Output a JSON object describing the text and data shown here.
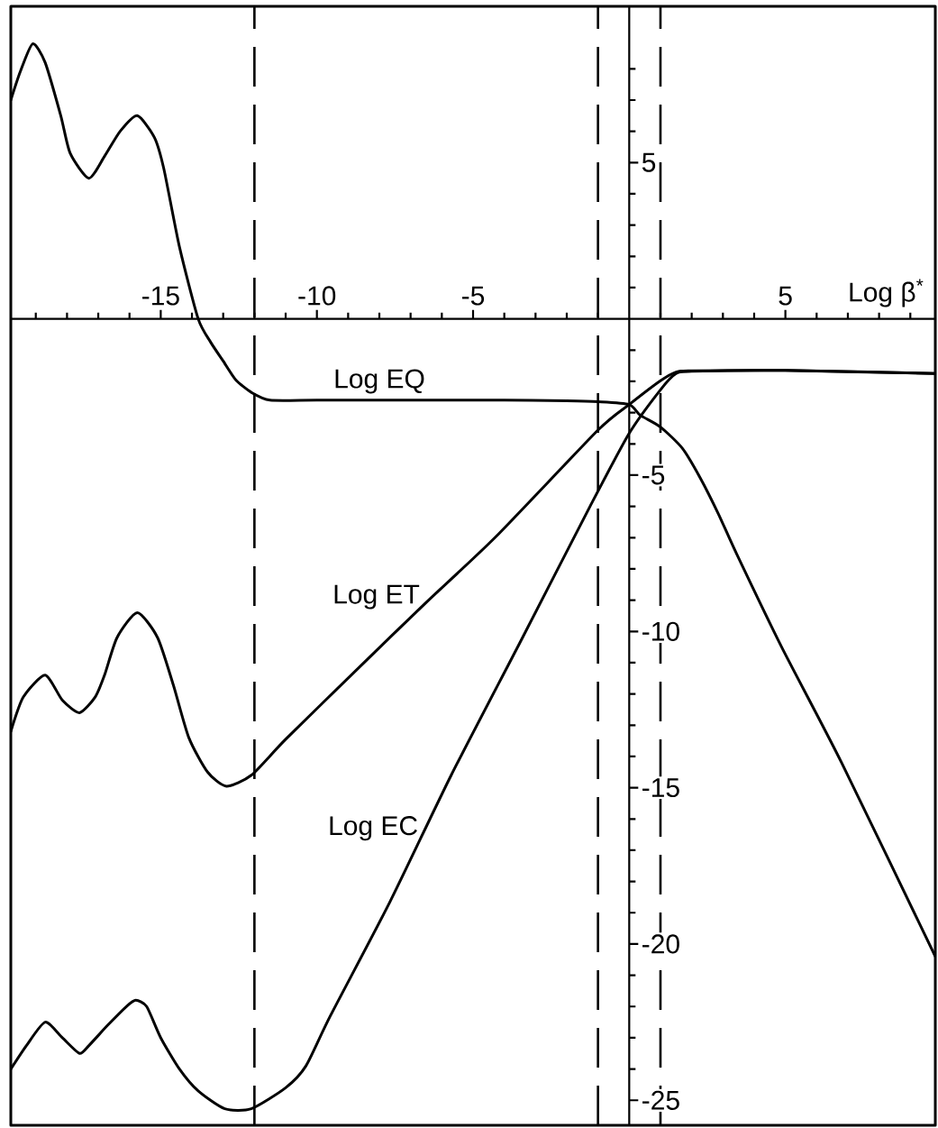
{
  "chart_data": {
    "type": "line",
    "xlabel": "Log β$^{*}$",
    "series": [
      {
        "name": "Log EQ",
        "color": "#000000",
        "x": [
          -19.8,
          -19.5,
          -19.1,
          -18.7,
          -18.2,
          -17.9,
          -17.3,
          -16.8,
          -16.3,
          -15.75,
          -15.2,
          -14.9,
          -14.4,
          -13.8,
          -13.4,
          -13.0,
          -12.6,
          -12.1,
          -11.5,
          -10,
          -7,
          -4,
          -2,
          -1,
          0,
          0.35,
          1,
          1.7,
          2.28,
          2.86,
          3.43,
          4.88,
          6.8,
          9.8
        ],
        "values": [
          7.0,
          7.9,
          8.8,
          8.2,
          6.5,
          5.3,
          4.5,
          5.2,
          6.0,
          6.5,
          5.8,
          4.8,
          2.3,
          0,
          -0.75,
          -1.35,
          -1.95,
          -2.35,
          -2.6,
          -2.6,
          -2.6,
          -2.6,
          -2.62,
          -2.65,
          -2.74,
          -3.08,
          -3.46,
          -4.14,
          -5.1,
          -6.25,
          -7.5,
          -10.5,
          -14.2,
          -20.4
        ]
      },
      {
        "name": "Log ET",
        "color": "#000000",
        "x": [
          -19.8,
          -19.4,
          -18.7,
          -18.15,
          -17.6,
          -17.1,
          -16.8,
          -16.4,
          -15.75,
          -15.1,
          -14.6,
          -14.1,
          -13.5,
          -12.9,
          -12.1,
          -11.0,
          -8.75,
          -6.5,
          -4.3,
          -1,
          0,
          1,
          1.5,
          2,
          5,
          9.8
        ],
        "values": [
          -13.2,
          -12.1,
          -11.4,
          -12.2,
          -12.6,
          -12.1,
          -11.4,
          -10.2,
          -9.4,
          -10.2,
          -11.7,
          -13.4,
          -14.5,
          -14.95,
          -14.6,
          -13.45,
          -11.25,
          -9.07,
          -7.0,
          -3.56,
          -2.74,
          -1.98,
          -1.7,
          -1.66,
          -1.65,
          -1.75
        ]
      },
      {
        "name": "Log EC",
        "color": "#000000",
        "x": [
          -19.8,
          -19.3,
          -18.7,
          -18.15,
          -17.6,
          -17.3,
          -16.7,
          -16.1,
          -15.8,
          -15.45,
          -15.0,
          -14.4,
          -13.8,
          -12.95,
          -12.1,
          -11.0,
          -10.35,
          -9.57,
          -7.66,
          -5.7,
          -3.47,
          -1.24,
          0,
          1,
          1.5,
          2,
          5,
          9.8
        ],
        "values": [
          -24.0,
          -23.25,
          -22.5,
          -23.0,
          -23.5,
          -23.25,
          -22.6,
          -22.0,
          -21.8,
          -22.0,
          -23.0,
          -24.0,
          -24.7,
          -25.27,
          -25.27,
          -24.6,
          -23.9,
          -22.3,
          -18.65,
          -14.6,
          -10.3,
          -5.97,
          -3.66,
          -2.27,
          -1.75,
          -1.68,
          -1.65,
          -1.75
        ]
      }
    ],
    "xlim": [
      -19.8,
      9.8
    ],
    "ylim": [
      -25.8,
      10
    ],
    "xticks": [
      {
        "value": -19,
        "label": null
      },
      {
        "value": -18,
        "label": null
      },
      {
        "value": -17,
        "label": null
      },
      {
        "value": -16,
        "label": null
      },
      -15,
      {
        "value": -14,
        "label": null
      },
      {
        "value": -13,
        "label": null
      },
      {
        "value": -12,
        "label": null
      },
      {
        "value": -11,
        "label": null
      },
      -10,
      {
        "value": -9,
        "label": null
      },
      {
        "value": -8,
        "label": null
      },
      {
        "value": -7,
        "label": null
      },
      {
        "value": -6,
        "label": null
      },
      -5,
      {
        "value": -4,
        "label": null
      },
      {
        "value": -3,
        "label": null
      },
      {
        "value": -2,
        "label": null
      },
      {
        "value": -1,
        "label": null
      },
      {
        "value": 1,
        "label": null
      },
      {
        "value": 2,
        "label": null
      },
      {
        "value": 3,
        "label": null
      },
      {
        "value": 4,
        "label": null
      },
      5,
      {
        "value": 6,
        "label": null
      },
      {
        "value": 7,
        "label": null
      },
      {
        "value": 8,
        "label": null
      },
      {
        "value": 9,
        "label": null
      }
    ],
    "yticks": [
      -25,
      {
        "value": -24,
        "label": null
      },
      {
        "value": -23,
        "label": null
      },
      {
        "value": -22,
        "label": null
      },
      {
        "value": -21,
        "label": null
      },
      -20,
      {
        "value": -19,
        "label": null
      },
      {
        "value": -18,
        "label": null
      },
      {
        "value": -17,
        "label": null
      },
      {
        "value": -16,
        "label": null
      },
      -15,
      {
        "value": -14,
        "label": null
      },
      {
        "value": -13,
        "label": null
      },
      {
        "value": -12,
        "label": null
      },
      {
        "value": -11,
        "label": null
      },
      -10,
      {
        "value": -9,
        "label": null
      },
      {
        "value": -8,
        "label": null
      },
      {
        "value": -7,
        "label": null
      },
      {
        "value": -6,
        "label": null
      },
      -5,
      {
        "value": -4,
        "label": null
      },
      {
        "value": -3,
        "label": null
      },
      {
        "value": -2,
        "label": null
      },
      {
        "value": -1,
        "label": null
      },
      {
        "value": 1,
        "label": null
      },
      {
        "value": 2,
        "label": null
      },
      {
        "value": 3,
        "label": null
      },
      {
        "value": 4,
        "label": null
      },
      5,
      {
        "value": 6,
        "label": null
      },
      {
        "value": 7,
        "label": null
      },
      {
        "value": 8,
        "label": null
      }
    ],
    "ref_lines": [
      {
        "axis": "x",
        "value": -12,
        "color": "#000000",
        "line_style": "dashed"
      },
      {
        "axis": "x",
        "value": -1,
        "color": "#000000",
        "line_style": "dashed"
      },
      {
        "axis": "x",
        "value": 1,
        "color": "#000000",
        "line_style": "dashed"
      }
    ],
    "grid": false,
    "legend": false,
    "marker": "none",
    "line_style": "solid"
  }
}
